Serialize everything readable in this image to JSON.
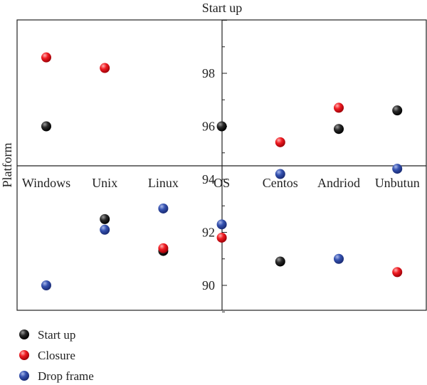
{
  "chart_data": {
    "type": "scatter",
    "title": "Start up",
    "ylabel": "Platform",
    "categories": [
      "Windows",
      "Unix",
      "Linux",
      "OS",
      "Centos",
      "Andriod",
      "Unbutun"
    ],
    "y_ticks": [
      90,
      92,
      94,
      96,
      98
    ],
    "ylim": [
      88.9,
      100.7
    ],
    "series": [
      {
        "name": "Start up",
        "color": "#111111",
        "values": [
          96.0,
          92.5,
          91.3,
          96.0,
          90.9,
          95.9,
          96.6
        ]
      },
      {
        "name": "Closure",
        "color": "#e8141e",
        "values": [
          98.6,
          98.2,
          91.4,
          91.8,
          95.4,
          96.7,
          90.5
        ]
      },
      {
        "name": "Drop frame",
        "color": "#2f4fa8",
        "values": [
          90.0,
          92.1,
          92.9,
          92.3,
          94.2,
          91.0,
          94.4
        ]
      }
    ],
    "legend_position": "bottom-left",
    "grid": false
  }
}
